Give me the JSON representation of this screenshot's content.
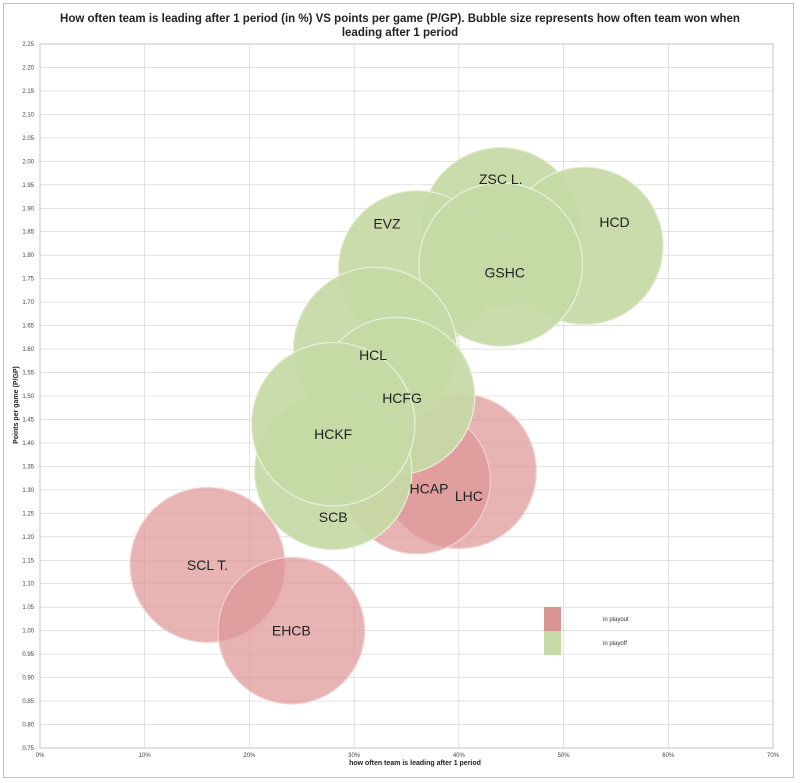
{
  "chart_data": {
    "type": "bubble",
    "title": "How often team is leading after 1 period (in %) VS points per game (P/GP). Bubble size represents how often team won when leading after 1 period",
    "xlabel": "how often team is leading after 1 period",
    "ylabel": "Points per game (P/GP)",
    "xlim": [
      0,
      70
    ],
    "ylim": [
      0.75,
      2.25
    ],
    "x_ticks": [
      0,
      10,
      20,
      30,
      40,
      50,
      60,
      70
    ],
    "x_tick_labels": [
      "0%",
      "10%",
      "20%",
      "30%",
      "40%",
      "50%",
      "60%",
      "70%"
    ],
    "y_ticks": [
      0.75,
      0.8,
      0.85,
      0.9,
      0.95,
      1.0,
      1.05,
      1.1,
      1.15,
      1.2,
      1.25,
      1.3,
      1.35,
      1.4,
      1.45,
      1.5,
      1.55,
      1.6,
      1.65,
      1.7,
      1.75,
      1.8,
      1.85,
      1.9,
      1.95,
      2.0,
      2.05,
      2.1,
      2.15,
      2.2,
      2.25
    ],
    "y_tick_labels": [
      "0.75",
      "0.80",
      "0.85",
      "0.90",
      "0.95",
      "1.00",
      "1.05",
      "1.10",
      "1.15",
      "1.20",
      "1.25",
      "1.30",
      "1.35",
      "1.40",
      "1.45",
      "1.50",
      "1.55",
      "1.60",
      "1.65",
      "1.70",
      "1.75",
      "1.80",
      "1.85",
      "1.90",
      "1.95",
      "2.00",
      "2.05",
      "2.10",
      "2.15",
      "2.20",
      "2.25"
    ],
    "grid": true,
    "legend": {
      "position": "bottom-right",
      "entries": [
        {
          "label": "in playout",
          "color": "#d99594"
        },
        {
          "label": "in playoff",
          "color": "#c6d9a6"
        }
      ]
    },
    "series": [
      {
        "name": "in playoff",
        "color": "#c6d9a6",
        "points": [
          {
            "label": "ZSC L.",
            "x": 44,
            "y": 1.86,
            "size": 0.92
          },
          {
            "label": "HCD",
            "x": 52,
            "y": 1.82,
            "size": 0.9
          },
          {
            "label": "EVZ",
            "x": 36,
            "y": 1.77,
            "size": 0.9
          },
          {
            "label": "GSHC",
            "x": 44,
            "y": 1.78,
            "size": 0.97
          },
          {
            "label": "HCL",
            "x": 32,
            "y": 1.6,
            "size": 0.97
          },
          {
            "label": "HCFG",
            "x": 34,
            "y": 1.5,
            "size": 0.9
          },
          {
            "label": "SCB",
            "x": 28,
            "y": 1.34,
            "size": 0.9
          },
          {
            "label": "HCKF",
            "x": 28,
            "y": 1.44,
            "size": 0.97
          }
        ]
      },
      {
        "name": "in playout",
        "color": "#d99594",
        "points": [
          {
            "label": "LHC",
            "x": 40,
            "y": 1.34,
            "size": 0.87
          },
          {
            "label": "HCAP",
            "x": 36,
            "y": 1.32,
            "size": 0.78
          },
          {
            "label": "SCL T.",
            "x": 16,
            "y": 1.14,
            "size": 0.87
          },
          {
            "label": "EHCB",
            "x": 24,
            "y": 1.0,
            "size": 0.78
          }
        ]
      }
    ]
  }
}
